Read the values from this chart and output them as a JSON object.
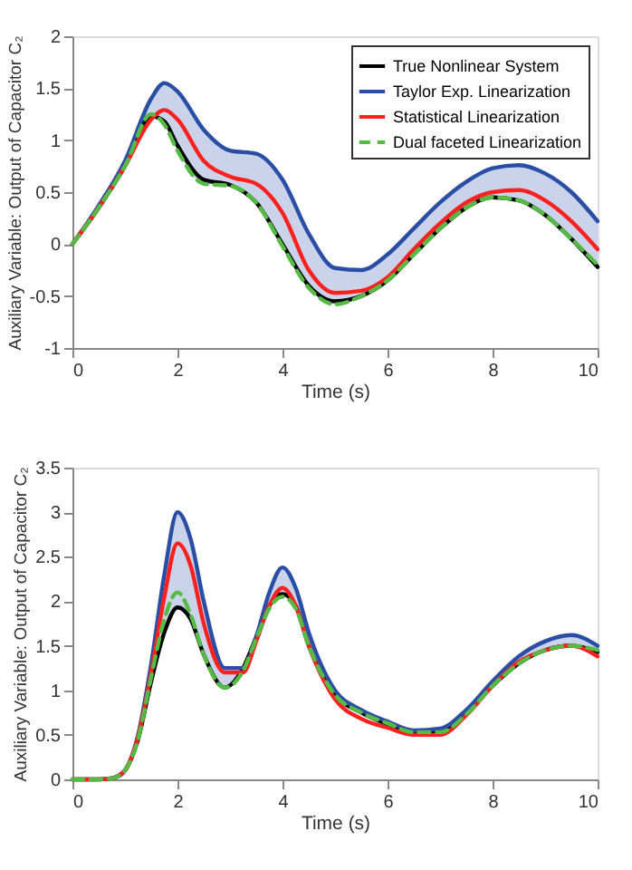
{
  "chart_data": [
    {
      "type": "line",
      "xlabel": "Time (s)",
      "ylabel": "Auxiliary Variable: Output of Capacitor C₂",
      "xlim": [
        0,
        10
      ],
      "ylim": [
        -1,
        2
      ],
      "xticks": [
        0,
        2,
        4,
        6,
        8,
        10
      ],
      "yticks": [
        -1,
        -0.5,
        0,
        0.5,
        1,
        1.5,
        2
      ],
      "grid": false,
      "legend": "top right",
      "marker": "none",
      "x": [
        0,
        0.5,
        1,
        1.5,
        1.75,
        2,
        2.5,
        3,
        3.5,
        4,
        4.5,
        5,
        5.5,
        6,
        6.5,
        7,
        7.5,
        8,
        8.5,
        9,
        9.5,
        10
      ],
      "series": [
        {
          "name": "True Nonlinear System",
          "color": "#000000",
          "line_style": "solid",
          "values": [
            0,
            0.35,
            0.75,
            1.23,
            1.18,
            0.95,
            0.62,
            0.57,
            0.4,
            0.0,
            -0.4,
            -0.55,
            -0.5,
            -0.35,
            -0.1,
            0.15,
            0.35,
            0.45,
            0.42,
            0.28,
            0.05,
            -0.22
          ]
        },
        {
          "name": "Taylor Exp. Linearization",
          "color": "#2a4ea6",
          "line_style": "solid",
          "values": [
            0,
            0.37,
            0.8,
            1.4,
            1.55,
            1.47,
            1.1,
            0.9,
            0.87,
            0.62,
            0.1,
            -0.23,
            -0.25,
            -0.1,
            0.15,
            0.4,
            0.6,
            0.73,
            0.76,
            0.68,
            0.5,
            0.22
          ],
          "lower": [
            0,
            0.35,
            0.75,
            1.25,
            1.15,
            0.9,
            0.58,
            0.56,
            0.4,
            -0.02,
            -0.42,
            -0.58,
            -0.5,
            -0.35,
            -0.1,
            0.15,
            0.35,
            0.45,
            0.42,
            0.28,
            0.05,
            -0.2
          ],
          "upper": [
            0,
            0.37,
            0.8,
            1.4,
            1.55,
            1.47,
            1.1,
            0.9,
            0.87,
            0.62,
            0.1,
            -0.23,
            -0.25,
            -0.1,
            0.15,
            0.4,
            0.6,
            0.73,
            0.76,
            0.68,
            0.5,
            0.22
          ]
        },
        {
          "name": "Statistical Linearization",
          "color": "#ff2020",
          "line_style": "solid",
          "values": [
            0,
            0.35,
            0.75,
            1.2,
            1.29,
            1.2,
            0.8,
            0.65,
            0.58,
            0.3,
            -0.25,
            -0.47,
            -0.45,
            -0.32,
            -0.05,
            0.2,
            0.4,
            0.5,
            0.52,
            0.42,
            0.22,
            -0.05
          ]
        },
        {
          "name": "Dual faceted Linearization",
          "color": "#55bb44",
          "line_style": "dashed",
          "values": [
            0,
            0.35,
            0.75,
            1.25,
            1.15,
            0.9,
            0.58,
            0.56,
            0.4,
            -0.02,
            -0.42,
            -0.58,
            -0.5,
            -0.35,
            -0.1,
            0.15,
            0.35,
            0.45,
            0.42,
            0.28,
            0.05,
            -0.2
          ]
        }
      ]
    },
    {
      "type": "line",
      "xlabel": "Time (s)",
      "ylabel": "Auxiliary Variable: Output of Capacitor C₂",
      "xlim": [
        0,
        10
      ],
      "ylim": [
        0,
        3.5
      ],
      "xticks": [
        0,
        2,
        4,
        6,
        8,
        10
      ],
      "yticks": [
        0,
        0.5,
        1,
        1.5,
        2,
        2.5,
        3,
        3.5
      ],
      "grid": false,
      "legend": "top right",
      "marker": "none",
      "x": [
        0,
        0.5,
        0.8,
        1,
        1.25,
        1.5,
        1.75,
        2,
        2.25,
        2.5,
        2.9,
        3.25,
        3.5,
        3.75,
        4,
        4.25,
        4.5,
        5,
        5.5,
        6,
        6.5,
        7,
        7.5,
        8,
        8.5,
        9,
        9.5,
        10
      ],
      "series": [
        {
          "name": "True Nonlinear System",
          "color": "#000000",
          "line_style": "solid",
          "values": [
            0,
            0,
            0.02,
            0.1,
            0.45,
            1.1,
            1.65,
            1.93,
            1.8,
            1.4,
            1.03,
            1.25,
            1.6,
            1.95,
            2.08,
            1.95,
            1.5,
            0.95,
            0.75,
            0.62,
            0.52,
            0.55,
            0.75,
            1.05,
            1.3,
            1.45,
            1.5,
            1.43
          ]
        },
        {
          "name": "Taylor Exp. Linearization",
          "color": "#2a4ea6",
          "line_style": "solid",
          "values": [
            null,
            null,
            0.02,
            0.1,
            0.5,
            1.3,
            2.3,
            3.0,
            2.7,
            2.0,
            1.25,
            1.25,
            1.6,
            2.1,
            2.38,
            2.15,
            1.65,
            1.0,
            0.78,
            0.65,
            0.55,
            0.57,
            0.78,
            1.1,
            1.38,
            1.55,
            1.62,
            1.5
          ],
          "lower": [
            0,
            0,
            0.02,
            0.1,
            0.45,
            1.1,
            1.65,
            1.93,
            1.8,
            1.4,
            1.03,
            1.22,
            1.58,
            1.92,
            2.05,
            1.92,
            1.5,
            0.95,
            0.75,
            0.63,
            0.53,
            0.53,
            0.73,
            1.05,
            1.3,
            1.45,
            1.5,
            1.45
          ],
          "upper": [
            0,
            0,
            0.02,
            0.1,
            0.5,
            1.3,
            2.3,
            3.0,
            2.7,
            2.0,
            1.25,
            1.25,
            1.6,
            2.1,
            2.38,
            2.15,
            1.65,
            1.0,
            0.78,
            0.65,
            0.55,
            0.57,
            0.78,
            1.1,
            1.38,
            1.55,
            1.62,
            1.5
          ]
        },
        {
          "name": "Statistical Linearization",
          "color": "#ff2020",
          "line_style": "solid",
          "values": [
            0,
            0,
            0.02,
            0.1,
            0.48,
            1.2,
            2.05,
            2.65,
            2.4,
            1.75,
            1.2,
            1.2,
            1.55,
            1.95,
            2.15,
            1.95,
            1.5,
            0.9,
            0.68,
            0.58,
            0.5,
            0.5,
            0.72,
            1.05,
            1.32,
            1.45,
            1.5,
            1.38
          ]
        },
        {
          "name": "Dual faceted Linearization",
          "color": "#55bb44",
          "line_style": "dashed",
          "values": [
            0,
            0,
            0.02,
            0.1,
            0.45,
            1.15,
            1.8,
            2.1,
            1.85,
            1.4,
            1.03,
            1.22,
            1.58,
            1.92,
            2.05,
            1.92,
            1.5,
            0.95,
            0.75,
            0.63,
            0.53,
            0.53,
            0.73,
            1.05,
            1.3,
            1.45,
            1.5,
            1.45
          ]
        }
      ]
    }
  ]
}
